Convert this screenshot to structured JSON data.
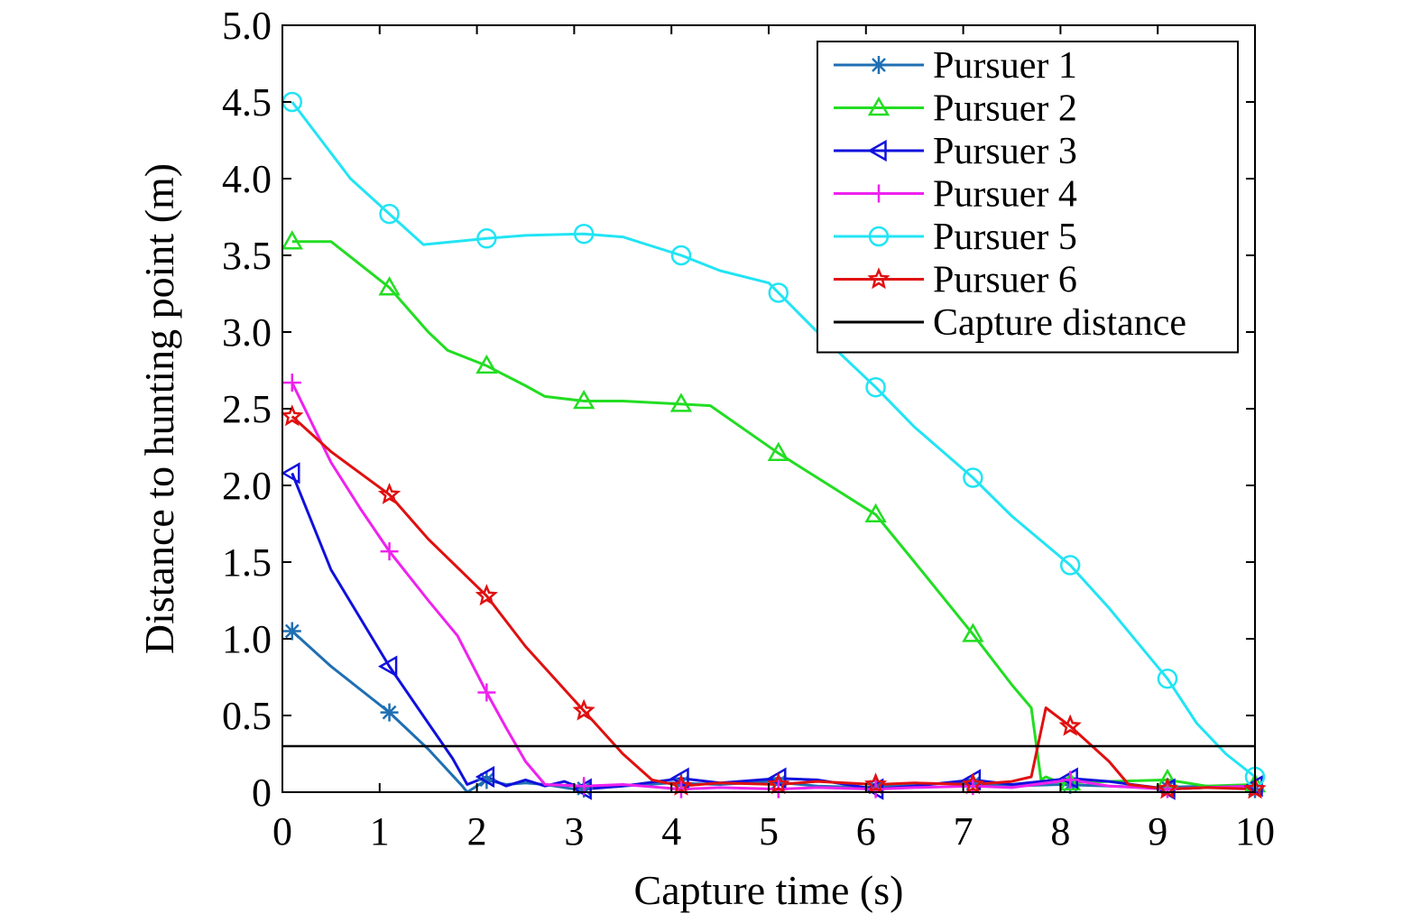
{
  "chart_data": {
    "type": "line",
    "title": "",
    "xlabel": "Capture time (s)",
    "ylabel": "Distance to hunting point (m)",
    "xlim": [
      0,
      10
    ],
    "ylim": [
      0,
      5.0
    ],
    "xticks": [
      0,
      1,
      2,
      3,
      4,
      5,
      6,
      7,
      8,
      9,
      10
    ],
    "xtick_labels": [
      "0",
      "1",
      "2",
      "3",
      "4",
      "5",
      "6",
      "7",
      "8",
      "9",
      "10"
    ],
    "yticks": [
      0,
      0.5,
      1.0,
      1.5,
      2.0,
      2.5,
      3.0,
      3.5,
      4.0,
      4.5,
      5.0
    ],
    "ytick_labels": [
      "0",
      "0.5",
      "1.0",
      "1.5",
      "2.0",
      "2.5",
      "3.0",
      "3.5",
      "4.0",
      "4.5",
      "5.0"
    ],
    "grid": false,
    "legend_position": "top-right",
    "series": [
      {
        "name": "Pursuer 1",
        "color": "#1f6fb4",
        "marker": "asterisk",
        "x": [
          0.1,
          0.5,
          1.1,
          1.5,
          1.85,
          1.9,
          2.1,
          2.3,
          2.5,
          2.7,
          3.0,
          3.5,
          4.0,
          4.5,
          5.0,
          5.5,
          6.0,
          6.5,
          7.0,
          7.5,
          8.0,
          8.5,
          9.0,
          9.5,
          10.0
        ],
        "y": [
          1.05,
          0.82,
          0.52,
          0.28,
          0.04,
          0.0,
          0.08,
          0.05,
          0.06,
          0.05,
          0.02,
          0.04,
          0.06,
          0.05,
          0.07,
          0.04,
          0.03,
          0.05,
          0.06,
          0.04,
          0.05,
          0.04,
          0.03,
          0.04,
          0.02
        ],
        "marker_x": [
          0.1,
          1.1,
          2.1,
          3.1,
          4.1,
          5.1,
          6.1,
          7.1,
          8.1,
          9.1,
          10.0
        ]
      },
      {
        "name": "Pursuer 2",
        "color": "#22dd22",
        "marker": "triangle-up",
        "x": [
          0.1,
          0.5,
          1.1,
          1.5,
          1.7,
          2.1,
          2.5,
          2.7,
          3.1,
          3.5,
          4.1,
          4.4,
          5.1,
          5.5,
          6.1,
          6.5,
          7.1,
          7.5,
          7.7,
          7.8,
          7.85,
          8.0,
          8.5,
          9.1,
          9.5,
          10.0
        ],
        "y": [
          3.59,
          3.59,
          3.29,
          3.0,
          2.88,
          2.78,
          2.65,
          2.58,
          2.55,
          2.55,
          2.53,
          2.52,
          2.21,
          2.05,
          1.81,
          1.5,
          1.03,
          0.7,
          0.55,
          0.08,
          0.1,
          0.06,
          0.07,
          0.08,
          0.04,
          0.05
        ],
        "marker_x": [
          0.1,
          1.1,
          2.1,
          3.1,
          4.1,
          5.1,
          6.1,
          7.1,
          8.1,
          9.1,
          10.0
        ]
      },
      {
        "name": "Pursuer 3",
        "color": "#1010dd",
        "marker": "triangle-left",
        "x": [
          0.1,
          0.5,
          1.1,
          1.5,
          1.75,
          1.9,
          2.1,
          2.3,
          2.5,
          2.7,
          2.9,
          3.1,
          3.5,
          4.1,
          4.5,
          5.1,
          5.5,
          6.1,
          6.5,
          7.1,
          7.5,
          8.1,
          8.5,
          9.1,
          9.5,
          10.0
        ],
        "y": [
          2.08,
          1.45,
          0.82,
          0.45,
          0.22,
          0.05,
          0.1,
          0.04,
          0.08,
          0.04,
          0.07,
          0.02,
          0.04,
          0.09,
          0.06,
          0.09,
          0.08,
          0.02,
          0.04,
          0.08,
          0.05,
          0.09,
          0.07,
          0.02,
          0.03,
          0.04
        ],
        "marker_x": [
          0.1,
          1.1,
          2.1,
          3.1,
          4.1,
          5.1,
          6.1,
          7.1,
          8.1,
          9.1,
          10.0
        ]
      },
      {
        "name": "Pursuer 4",
        "color": "#ee22ee",
        "marker": "plus",
        "x": [
          0.1,
          0.5,
          0.8,
          1.1,
          1.5,
          1.8,
          2.1,
          2.3,
          2.5,
          2.7,
          3.1,
          3.5,
          4.1,
          4.5,
          5.1,
          5.5,
          6.1,
          6.5,
          7.1,
          7.5,
          8.1,
          8.5,
          9.1,
          9.5,
          10.0
        ],
        "y": [
          2.67,
          2.15,
          1.85,
          1.57,
          1.25,
          1.02,
          0.65,
          0.42,
          0.2,
          0.05,
          0.04,
          0.05,
          0.02,
          0.03,
          0.02,
          0.03,
          0.02,
          0.03,
          0.04,
          0.03,
          0.08,
          0.04,
          0.02,
          0.03,
          0.04
        ],
        "marker_x": [
          0.1,
          1.1,
          2.1,
          3.1,
          4.1,
          5.1,
          6.1,
          7.1,
          8.1,
          9.1,
          10.0
        ]
      },
      {
        "name": "Pursuer 5",
        "color": "#22e4f4",
        "marker": "circle",
        "x": [
          0.1,
          0.4,
          0.7,
          1.1,
          1.45,
          2.1,
          2.5,
          3.1,
          3.5,
          4.1,
          4.5,
          5.0,
          5.5,
          6.1,
          6.5,
          7.1,
          7.5,
          8.1,
          8.5,
          9.1,
          9.4,
          9.7,
          10.0
        ],
        "y": [
          4.5,
          4.25,
          4.0,
          3.77,
          3.57,
          3.61,
          3.63,
          3.64,
          3.62,
          3.5,
          3.4,
          3.32,
          3.0,
          2.64,
          2.38,
          2.05,
          1.8,
          1.48,
          1.2,
          0.74,
          0.45,
          0.25,
          0.1
        ],
        "marker_x": [
          0.1,
          1.1,
          2.1,
          3.1,
          4.1,
          5.1,
          6.1,
          7.1,
          8.1,
          9.1,
          10.0
        ]
      },
      {
        "name": "Pursuer 6",
        "color": "#e01010",
        "marker": "star",
        "x": [
          0.1,
          0.5,
          1.1,
          1.5,
          2.1,
          2.5,
          3.1,
          3.5,
          3.8,
          4.1,
          4.5,
          5.1,
          5.5,
          6.1,
          6.5,
          7.1,
          7.5,
          7.7,
          7.85,
          8.1,
          8.5,
          8.7,
          9.1,
          9.5,
          10.0
        ],
        "y": [
          2.45,
          2.22,
          1.94,
          1.65,
          1.28,
          0.95,
          0.53,
          0.25,
          0.08,
          0.04,
          0.06,
          0.05,
          0.07,
          0.05,
          0.06,
          0.05,
          0.07,
          0.1,
          0.55,
          0.43,
          0.2,
          0.05,
          0.02,
          0.03,
          0.02
        ],
        "marker_x": [
          0.1,
          1.1,
          2.1,
          3.1,
          4.1,
          5.1,
          6.1,
          7.1,
          8.1,
          9.1,
          10.0
        ]
      },
      {
        "name": "Capture distance",
        "color": "#000000",
        "marker": "none",
        "x": [
          0,
          10
        ],
        "y": [
          0.3,
          0.3
        ]
      }
    ]
  }
}
